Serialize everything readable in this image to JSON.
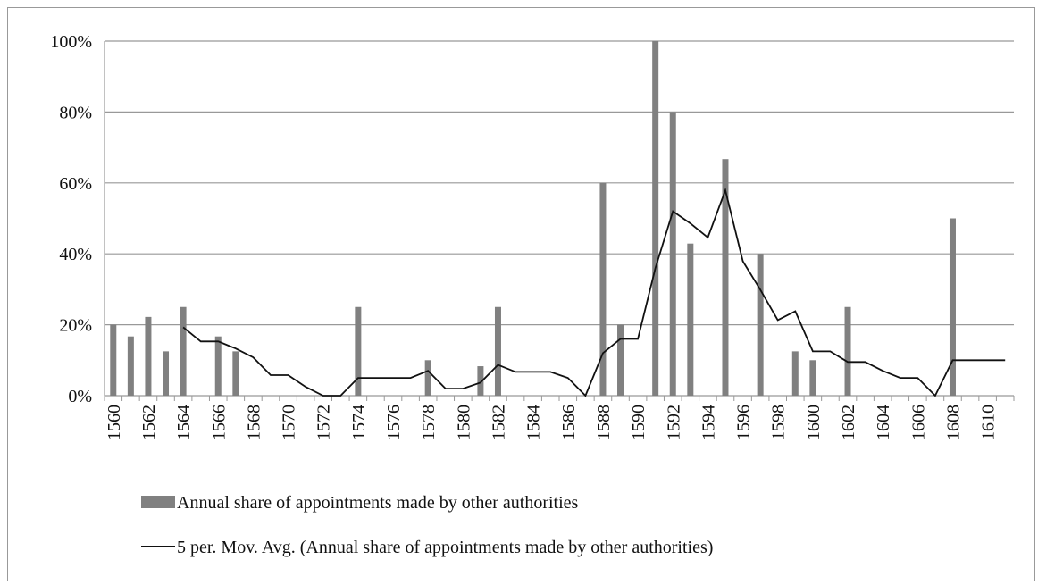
{
  "chart_data": {
    "type": "bar-line",
    "categories": [
      "1560",
      null,
      "1562",
      null,
      "1564",
      null,
      "1566",
      null,
      "1568",
      null,
      "1570",
      null,
      "1572",
      null,
      "1574",
      null,
      "1576",
      null,
      "1578",
      null,
      "1580",
      null,
      "1582",
      null,
      "1584",
      null,
      "1586",
      null,
      "1588",
      null,
      "1590",
      null,
      "1592",
      null,
      "1594",
      null,
      "1596",
      null,
      "1598",
      null,
      "1600",
      null,
      "1602",
      null,
      "1604",
      null,
      "1606",
      null,
      "1608",
      null,
      "1610",
      null
    ],
    "series": [
      {
        "name": "Annual share of appointments made by other authorities",
        "type": "bar",
        "color": "#808080",
        "values": [
          20,
          16.7,
          22.2,
          12.5,
          25,
          0,
          16.7,
          12.5,
          0,
          0,
          0,
          0,
          0,
          0,
          25,
          0,
          0,
          0,
          10,
          0,
          0,
          8.3,
          25,
          0,
          0,
          0,
          0,
          0,
          60,
          20,
          0,
          100,
          80,
          42.9,
          0,
          66.7,
          0,
          40,
          0,
          12.5,
          10,
          0,
          25,
          0,
          0,
          0,
          0,
          0,
          50,
          0,
          0,
          0
        ]
      },
      {
        "name": "5 per. Mov. Avg. (Annual share of appointments made by other authorities)",
        "type": "line",
        "color": "#111111",
        "values": [
          null,
          null,
          null,
          null,
          19.3,
          15.3,
          15.3,
          13.3,
          10.8,
          5.8,
          5.8,
          2.5,
          0,
          0,
          5,
          5,
          5,
          5,
          7,
          2,
          2,
          3.7,
          8.7,
          6.7,
          6.7,
          6.7,
          5,
          0,
          12,
          16,
          16,
          36,
          52,
          48.6,
          44.6,
          57.9,
          37.9,
          29.9,
          21.3,
          23.8,
          12.5,
          12.5,
          9.5,
          9.5,
          7,
          5,
          5,
          0,
          10,
          10,
          10,
          10
        ]
      }
    ],
    "ylim": [
      0,
      100
    ],
    "yticks": [
      {
        "value": 0,
        "label": "0%"
      },
      {
        "value": 20,
        "label": "20%"
      },
      {
        "value": 40,
        "label": "40%"
      },
      {
        "value": 60,
        "label": "60%"
      },
      {
        "value": 80,
        "label": "80%"
      },
      {
        "value": 100,
        "label": "100%"
      }
    ],
    "grid": true,
    "legend": "bottom"
  }
}
